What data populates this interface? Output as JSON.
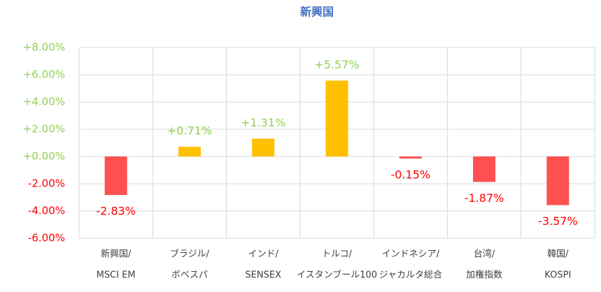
{
  "chart_data": {
    "type": "bar",
    "title": "新興国",
    "categories": [
      [
        "新興国/",
        "MSCI EM"
      ],
      [
        "ブラジル/",
        "ボベスパ"
      ],
      [
        "インド/",
        "SENSEX"
      ],
      [
        "トルコ/",
        "イスタンブール100"
      ],
      [
        "インドネシア/",
        "ジャカルタ総合"
      ],
      [
        "台湾/",
        "加権指数"
      ],
      [
        "韓国/",
        "KOSPI"
      ]
    ],
    "values": [
      -2.83,
      0.71,
      1.31,
      5.57,
      -0.15,
      -1.87,
      -3.57
    ],
    "value_labels": [
      "-2.83%",
      "+0.71%",
      "+1.31%",
      "+5.57%",
      "-0.15%",
      "-1.87%",
      "-3.57%"
    ],
    "positive_color": "#ffc000",
    "negative_color": "#ff5050",
    "positive_label_color": "#92d050",
    "negative_label_color": "#ff0000",
    "ylim": [
      -6,
      8
    ],
    "yticks": [
      {
        "value": -6,
        "label": "-6.00%"
      },
      {
        "value": -4,
        "label": "-4.00%"
      },
      {
        "value": -2,
        "label": "-2.00%"
      },
      {
        "value": 0,
        "label": "+0.00%"
      },
      {
        "value": 2,
        "label": "+2.00%"
      },
      {
        "value": 4,
        "label": "+4.00%"
      },
      {
        "value": 6,
        "label": "+6.00%"
      },
      {
        "value": 8,
        "label": "+8.00%"
      }
    ],
    "grid": true
  }
}
